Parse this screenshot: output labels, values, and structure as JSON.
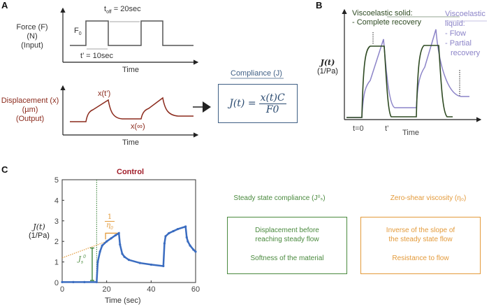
{
  "panels": {
    "a": {
      "label": "A",
      "force_ylabel": [
        "Force (F)",
        "(N)",
        "(Input)"
      ],
      "f0": "F",
      "f0_sub": "0",
      "toff": "t",
      "toff_sub": "off",
      "toff_value": " = 20sec",
      "tprime": "t’ = 10sec",
      "xlabel_top": "Time",
      "disp_ylabel": [
        "Displacement (x)",
        "(µm)",
        "(Output)"
      ],
      "x_tprime": "x(t’)",
      "x_inf": "x(∞)",
      "xlabel_bottom": "Time",
      "compliance_title": "Compliance (J)",
      "equation_lhs": "J(t) =",
      "equation_num": "x(t)C",
      "equation_den": "F0"
    },
    "b": {
      "label": "B",
      "ylabel": "J(t)",
      "yunit": "(1/Pa)",
      "solid_title": "Viscoelastic solid:",
      "solid_items": [
        "- Complete recovery"
      ],
      "liquid_title": [
        "Viscoelastic",
        "liquid:"
      ],
      "liquid_items": [
        "- Flow",
        "- Partial",
        "recovery"
      ],
      "t0": "t=0",
      "tprime": "t’",
      "xlabel": "Time",
      "colors": {
        "solid": "#2e4a22",
        "liquid": "#8c84c8"
      }
    },
    "c": {
      "label": "C",
      "js0": "J",
      "js0_sub": "s",
      "js0_sup": "0",
      "eta_num": "1",
      "eta_den": "η",
      "eta_sub": "0",
      "left_heading": "Steady state compliance (J⁰ₛ)",
      "left_box": [
        "Displacement before",
        "reaching steady flow",
        "Softness of the material"
      ],
      "right_heading": "Zero-shear viscosity (η₀)",
      "right_box": [
        "Inverse of the slope of",
        "the steady state flow",
        "Resistance to flow"
      ],
      "colors": {
        "green": "#4a8a3e",
        "orange": "#e39a3a"
      }
    }
  },
  "chart_data": {
    "type": "line",
    "title": "Control",
    "xlabel": "Time (sec)",
    "ylabel": "J(t) (1/Pa)",
    "xlim": [
      0,
      60
    ],
    "ylim": [
      0,
      5
    ],
    "xticks": [
      0,
      20,
      40,
      60
    ],
    "yticks": [
      0,
      1,
      2,
      3,
      4,
      5
    ],
    "grid": false,
    "color": "#3a6cc0",
    "x": [
      0,
      5,
      10,
      15.5,
      16,
      17,
      18,
      20,
      22,
      24,
      25.5,
      26,
      27,
      28,
      30,
      35,
      40,
      45.5,
      46,
      46.5,
      48,
      50,
      52,
      55.5,
      56,
      56.5,
      57.5,
      59,
      60
    ],
    "y": [
      0.02,
      0.02,
      0.02,
      0.02,
      1.0,
      1.5,
      1.8,
      2.0,
      2.15,
      2.3,
      2.4,
      1.85,
      1.4,
      1.25,
      1.1,
      0.95,
      0.87,
      0.8,
      1.9,
      2.25,
      2.4,
      2.5,
      2.6,
      2.72,
      2.2,
      2.0,
      1.8,
      1.6,
      1.5
    ],
    "annotations": {
      "dotted_vline_x": 15.5,
      "tangent_intercept": 1.2,
      "tangent_slope": 0.05
    }
  }
}
